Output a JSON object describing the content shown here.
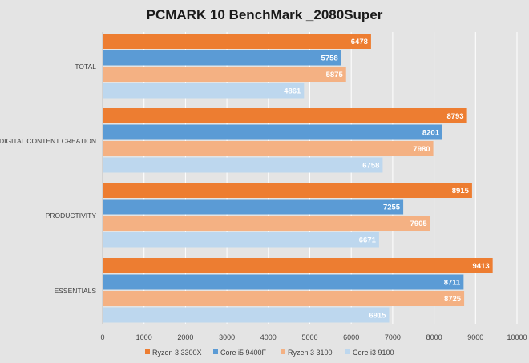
{
  "chart_data": {
    "type": "bar",
    "orientation": "horizontal",
    "title": "PCMARK 10 BenchMark _2080Super",
    "xlabel": "",
    "ylabel": "",
    "categories": [
      "TOTAL",
      "DIGITAL CONTENT CREATION",
      "PRODUCTIVITY",
      "ESSENTIALS"
    ],
    "series": [
      {
        "name": "Ryzen 3 3300X",
        "color": "#ed7d31",
        "values": [
          6478,
          8793,
          8915,
          9413
        ]
      },
      {
        "name": "Core i5 9400F",
        "color": "#5b9bd5",
        "values": [
          5758,
          8201,
          7255,
          8711
        ]
      },
      {
        "name": "Ryzen 3 3100",
        "color": "#f4b183",
        "values": [
          5875,
          7980,
          7905,
          8725
        ]
      },
      {
        "name": "Core i3 9100",
        "color": "#bdd7ee",
        "values": [
          4861,
          6758,
          6671,
          6915
        ]
      }
    ],
    "xlim": [
      0,
      10000
    ],
    "xticks": [
      0,
      1000,
      2000,
      3000,
      4000,
      5000,
      6000,
      7000,
      8000,
      9000,
      10000
    ],
    "grid": true,
    "legend_position": "bottom",
    "data_labels": true
  }
}
